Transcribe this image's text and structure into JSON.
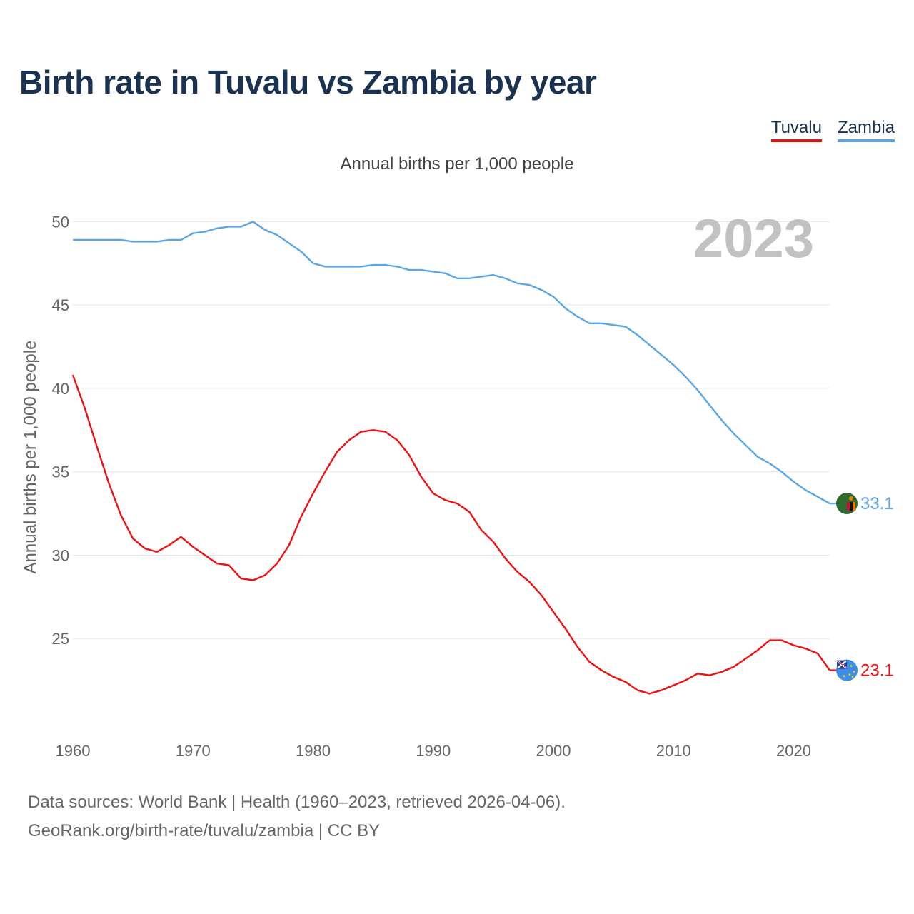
{
  "title": "Birth rate in Tuvalu vs Zambia by year",
  "legend": {
    "tuvalu": "Tuvalu",
    "zambia": "Zambia"
  },
  "subtitle": "Annual births per 1,000 people",
  "colors": {
    "tuvalu": "#ee1111",
    "zambia": "#5aa6e6",
    "grid": "#e6e6e6",
    "axis_text": "#666666",
    "year_watermark": "#c2c2c2"
  },
  "footer": {
    "line1": "Data sources: World Bank | Health (1960–2023, retrieved 2026-04-06).",
    "line2": "GeoRank.org/birth-rate/tuvalu/zambia | CC BY"
  },
  "chart_data": {
    "type": "line",
    "title": "Birth rate in Tuvalu vs Zambia by year",
    "ylabel": "Annual births per 1,000 people",
    "xlabel": "",
    "year_label": "2023",
    "xlim": [
      1960,
      2023
    ],
    "ylim": [
      20,
      51
    ],
    "yticks": [
      25,
      30,
      35,
      40,
      45,
      50
    ],
    "xticks": [
      1960,
      1970,
      1980,
      1990,
      2000,
      2010,
      2020
    ],
    "grid": true,
    "x": [
      1960,
      1961,
      1962,
      1963,
      1964,
      1965,
      1966,
      1967,
      1968,
      1969,
      1970,
      1971,
      1972,
      1973,
      1974,
      1975,
      1976,
      1977,
      1978,
      1979,
      1980,
      1981,
      1982,
      1983,
      1984,
      1985,
      1986,
      1987,
      1988,
      1989,
      1990,
      1991,
      1992,
      1993,
      1994,
      1995,
      1996,
      1997,
      1998,
      1999,
      2000,
      2001,
      2002,
      2003,
      2004,
      2005,
      2006,
      2007,
      2008,
      2009,
      2010,
      2011,
      2012,
      2013,
      2014,
      2015,
      2016,
      2017,
      2018,
      2019,
      2020,
      2021,
      2022,
      2023
    ],
    "series": [
      {
        "name": "Tuvalu",
        "end_label": "23.1",
        "values": [
          40.8,
          38.8,
          36.5,
          34.3,
          32.4,
          31.0,
          30.4,
          30.2,
          30.6,
          31.1,
          30.5,
          30.0,
          29.5,
          29.4,
          28.6,
          28.5,
          28.8,
          29.5,
          30.6,
          32.3,
          33.7,
          35.0,
          36.2,
          36.9,
          37.4,
          37.5,
          37.4,
          36.9,
          36.0,
          34.7,
          33.7,
          33.3,
          33.1,
          32.6,
          31.5,
          30.8,
          29.8,
          29.0,
          28.4,
          27.6,
          26.6,
          25.6,
          24.5,
          23.6,
          23.1,
          22.7,
          22.4,
          21.9,
          21.7,
          21.9,
          22.2,
          22.5,
          22.9,
          22.8,
          23.0,
          23.3,
          23.8,
          24.3,
          24.9,
          24.9,
          24.6,
          24.4,
          24.1,
          23.1
        ]
      },
      {
        "name": "Zambia",
        "end_label": "33.1",
        "values": [
          48.9,
          48.9,
          48.9,
          48.9,
          48.9,
          48.8,
          48.8,
          48.8,
          48.9,
          48.9,
          49.3,
          49.4,
          49.6,
          49.7,
          49.7,
          50.0,
          49.5,
          49.2,
          48.7,
          48.2,
          47.5,
          47.3,
          47.3,
          47.3,
          47.3,
          47.4,
          47.4,
          47.3,
          47.1,
          47.1,
          47.0,
          46.9,
          46.6,
          46.6,
          46.7,
          46.8,
          46.6,
          46.3,
          46.2,
          45.9,
          45.5,
          44.8,
          44.3,
          43.9,
          43.9,
          43.8,
          43.7,
          43.2,
          42.6,
          42.0,
          41.4,
          40.7,
          39.9,
          39.0,
          38.1,
          37.3,
          36.6,
          35.9,
          35.5,
          35.0,
          34.4,
          33.9,
          33.5,
          33.1
        ]
      }
    ]
  }
}
